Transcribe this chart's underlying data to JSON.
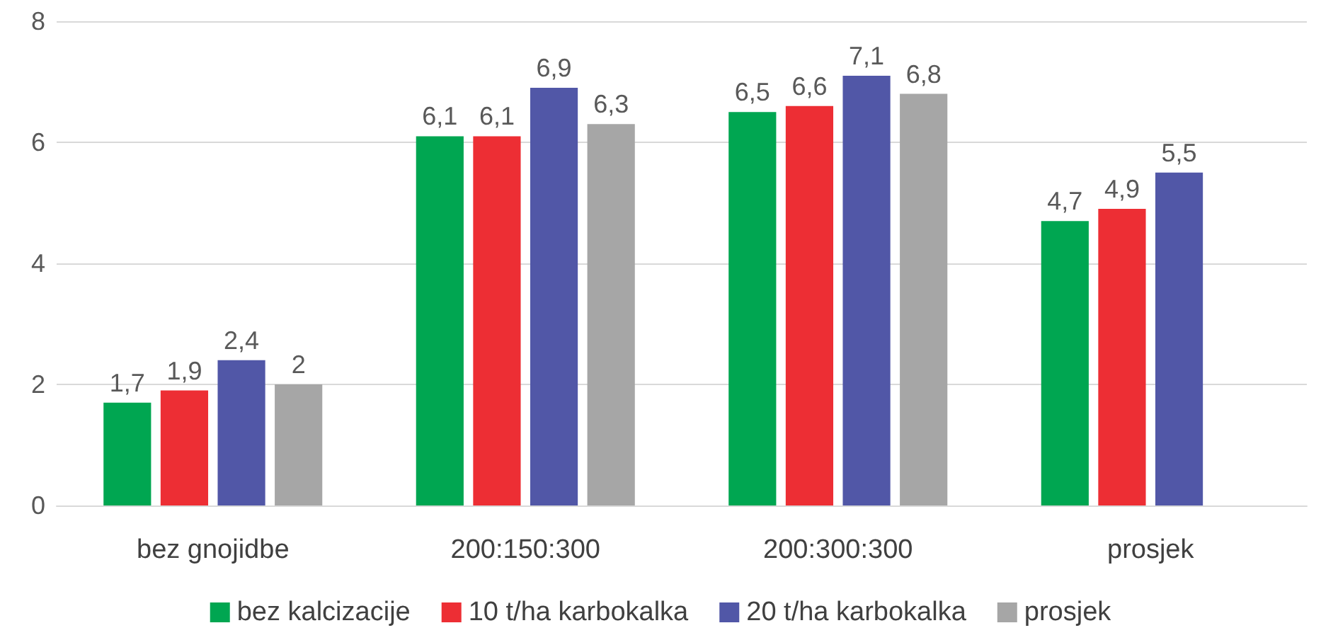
{
  "chart_data": {
    "type": "bar",
    "categories": [
      "bez gnojidbe",
      "200:150:300",
      "200:300:300",
      "prosjek"
    ],
    "series": [
      {
        "name": "bez kalcizacije",
        "color": "#00a651",
        "values": [
          1.7,
          6.1,
          6.5,
          4.7
        ],
        "value_labels": [
          "1,7",
          "6,1",
          "6,5",
          "4,7"
        ]
      },
      {
        "name": "10 t/ha karbokalka",
        "color": "#ed2e34",
        "values": [
          1.9,
          6.1,
          6.6,
          4.9
        ],
        "value_labels": [
          "1,9",
          "6,1",
          "6,6",
          "4,9"
        ]
      },
      {
        "name": "20 t/ha karbokalka",
        "color": "#5157a7",
        "values": [
          2.4,
          6.9,
          7.1,
          5.5
        ],
        "value_labels": [
          "2,4",
          "6,9",
          "7,1",
          "5,5"
        ]
      },
      {
        "name": "prosjek",
        "color": "#a6a6a6",
        "values": [
          2,
          6.3,
          6.8,
          null
        ],
        "value_labels": [
          "2",
          "6,3",
          "6,8",
          null
        ]
      }
    ],
    "ylim": [
      0,
      8
    ],
    "yticks": [
      0,
      2,
      4,
      6,
      8
    ],
    "grid": "y",
    "legend": "bottom"
  }
}
